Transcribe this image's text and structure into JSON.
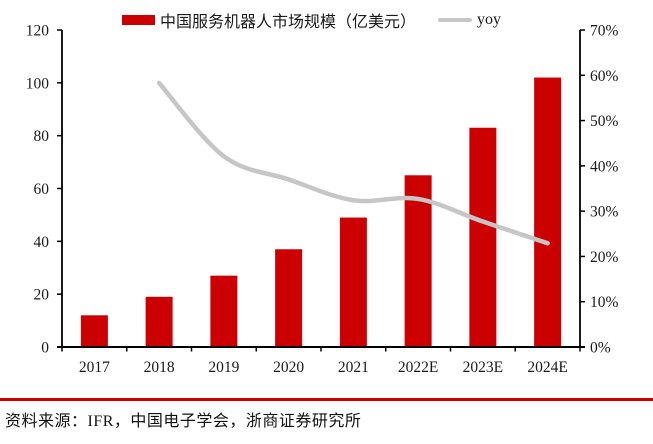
{
  "colors": {
    "bar": "#CC0000",
    "line": "#C6C6C6",
    "divider": "#CC0000",
    "axis": "#000000",
    "text": "#1a1a1a"
  },
  "chart_data": {
    "type": "bar",
    "categories": [
      "2017",
      "2018",
      "2019",
      "2020",
      "2021",
      "2022E",
      "2023E",
      "2024E"
    ],
    "series": [
      {
        "name": "中国服务机器人市场规模（亿美元）",
        "type": "bar",
        "axis": "left",
        "values": [
          12,
          19,
          27,
          37,
          49,
          65,
          83,
          102
        ]
      },
      {
        "name": "yoy",
        "type": "line",
        "axis": "right",
        "values": [
          null,
          58.3,
          42.1,
          37.0,
          32.4,
          32.7,
          27.7,
          22.9
        ]
      }
    ],
    "left_axis": {
      "min": 0,
      "max": 120,
      "step": 20,
      "ticks": [
        "0",
        "20",
        "40",
        "60",
        "80",
        "100",
        "120"
      ]
    },
    "right_axis": {
      "min": 0,
      "max": 70,
      "step": 10,
      "ticks": [
        "0%",
        "10%",
        "20%",
        "30%",
        "40%",
        "50%",
        "60%",
        "70%"
      ]
    },
    "grid": false,
    "legend_position": "top"
  },
  "footer": {
    "source_text": "资料来源：IFR，中国电子学会，浙商证券研究所"
  }
}
